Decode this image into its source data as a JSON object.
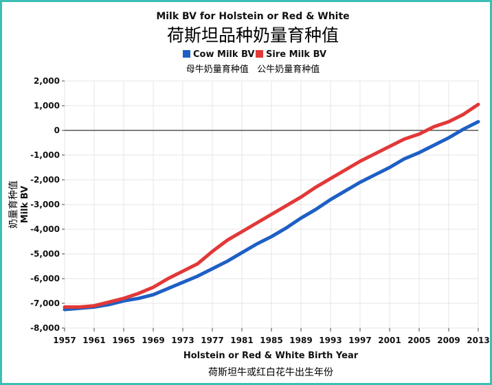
{
  "chart_data": {
    "type": "line",
    "title": "Milk BV for Holstein or Red & White",
    "title_cn": "荷斯坦品种奶量育种值",
    "legend_cn": "母牛奶量育种值   公牛奶量育种值",
    "xlabel": "Holstein or Red & White Birth Year",
    "xlabel_cn": "荷斯坦牛或红白花牛出生年份",
    "ylabel": "Milk BV",
    "ylabel_cn": "奶量育种值",
    "xlim": [
      1957,
      2013
    ],
    "ylim": [
      -8000,
      2000
    ],
    "x_ticks": [
      "1957",
      "1961",
      "1965",
      "1969",
      "1973",
      "1977",
      "1981",
      "1985",
      "1989",
      "1993",
      "1997",
      "2001",
      "2005",
      "2009",
      "2013"
    ],
    "y_ticks": [
      "2,000",
      "1,000",
      "0",
      "-1,000",
      "-2,000",
      "-3,000",
      "-4,000",
      "-5,000",
      "-6,000",
      "-7,000",
      "-8,000"
    ],
    "y_tick_values": [
      2000,
      1000,
      0,
      -1000,
      -2000,
      -3000,
      -4000,
      -5000,
      -6000,
      -7000,
      -8000
    ],
    "x_tick_values": [
      1957,
      1961,
      1965,
      1969,
      1973,
      1977,
      1981,
      1985,
      1989,
      1993,
      1997,
      2001,
      2005,
      2009,
      2013
    ],
    "series": [
      {
        "name": "Cow Milk BV",
        "color": "#1e5fc4",
        "x": [
          1957,
          1959,
          1961,
          1963,
          1965,
          1967,
          1969,
          1971,
          1973,
          1975,
          1977,
          1979,
          1981,
          1983,
          1985,
          1987,
          1989,
          1991,
          1993,
          1995,
          1997,
          1999,
          2001,
          2003,
          2005,
          2007,
          2009,
          2011,
          2013
        ],
        "values": [
          -7250,
          -7200,
          -7150,
          -7050,
          -6900,
          -6800,
          -6650,
          -6400,
          -6150,
          -5900,
          -5600,
          -5300,
          -4950,
          -4600,
          -4300,
          -3950,
          -3550,
          -3200,
          -2800,
          -2450,
          -2100,
          -1800,
          -1500,
          -1150,
          -900,
          -600,
          -300,
          50,
          350
        ]
      },
      {
        "name": "Sire Milk BV",
        "color": "#e23838",
        "x": [
          1957,
          1959,
          1961,
          1963,
          1965,
          1967,
          1969,
          1971,
          1973,
          1975,
          1977,
          1979,
          1981,
          1983,
          1985,
          1987,
          1989,
          1991,
          1993,
          1995,
          1997,
          1999,
          2001,
          2003,
          2005,
          2007,
          2009,
          2011,
          2013
        ],
        "values": [
          -7150,
          -7150,
          -7100,
          -6950,
          -6800,
          -6600,
          -6350,
          -6000,
          -5700,
          -5400,
          -4900,
          -4450,
          -4100,
          -3750,
          -3400,
          -3050,
          -2700,
          -2300,
          -1950,
          -1600,
          -1250,
          -950,
          -650,
          -350,
          -150,
          150,
          350,
          650,
          1050
        ]
      }
    ]
  }
}
